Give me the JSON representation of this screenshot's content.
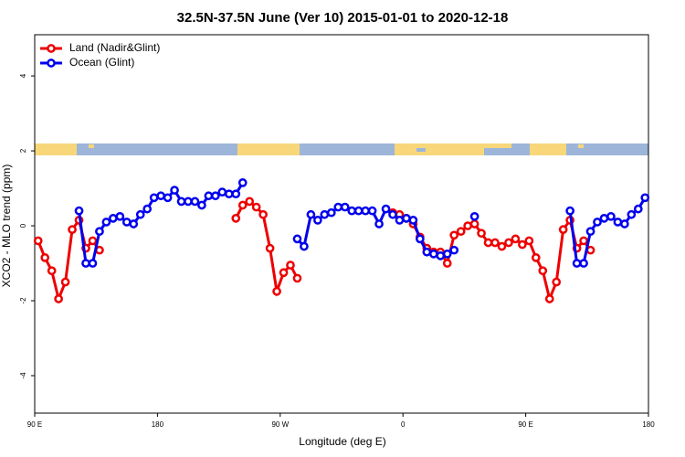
{
  "chart_data": {
    "type": "line",
    "title": "32.5N-37.5N June (Ver 10)   2015-01-01 to 2020-12-18",
    "x_label": "Longitude (deg E)",
    "y_label": "XCO2 - MLO trend (ppm)",
    "xlim": [
      90,
      540
    ],
    "ylim": [
      -5,
      5.1
    ],
    "xticks": [
      {
        "value": 90,
        "label": "90 E"
      },
      180,
      {
        "value": 270,
        "label": "90 W"
      },
      {
        "value": 360,
        "label": "0"
      },
      {
        "value": 450,
        "label": "90 E"
      },
      {
        "value": 540,
        "label": "180"
      }
    ],
    "yticks": [
      -4,
      -2,
      0,
      2,
      4
    ],
    "legend": "top-left",
    "series": [
      {
        "name": "Land (Nadir&Glint)",
        "color": "#ee0000",
        "x": [
          92.5,
          97.5,
          102.5,
          107.5,
          112.5,
          117.5,
          122.5,
          127.5,
          132.5,
          137.5,
          142.5,
          237.5,
          242.5,
          247.5,
          252.5,
          257.5,
          262.5,
          267.5,
          272.5,
          277.5,
          282.5,
          287.5,
          352.5,
          357.5,
          362.5,
          367.5,
          372.5,
          377.5,
          382.5,
          387.5,
          392.5,
          397.5,
          402.5,
          407.5,
          412.5,
          417.5,
          422.5,
          427.5,
          432.5,
          437.5,
          442.5,
          447.5,
          452.5,
          457.5,
          462.5,
          467.5,
          472.5,
          477.5,
          482.5,
          487.5,
          492.5,
          497.5
        ],
        "values": [
          -0.4,
          -0.85,
          -1.2,
          -1.95,
          -1.5,
          -0.1,
          0.15,
          -0.6,
          -0.4,
          -0.65,
          null,
          0.2,
          0.55,
          0.65,
          0.5,
          0.3,
          -0.6,
          -1.75,
          -1.25,
          -1.05,
          -1.4,
          null,
          0.35,
          0.3,
          0.2,
          0.05,
          -0.3,
          -0.6,
          -0.7,
          -0.7,
          -1.0,
          -0.25,
          -0.15,
          0.0,
          0.05,
          -0.2,
          -0.45,
          -0.45,
          -0.55,
          -0.45,
          -0.35,
          -0.5,
          -0.4,
          -0.85,
          -1.2,
          -1.95,
          -1.5,
          -0.1,
          0.15,
          -0.6,
          -0.4,
          -0.65
        ]
      },
      {
        "name": "Ocean (Glint)",
        "color": "#0000ee",
        "x": [
          122.5,
          127.5,
          132.5,
          137.5,
          142.5,
          147.5,
          152.5,
          157.5,
          162.5,
          167.5,
          172.5,
          177.5,
          182.5,
          187.5,
          192.5,
          197.5,
          202.5,
          207.5,
          212.5,
          217.5,
          222.5,
          227.5,
          232.5,
          237.5,
          242.5,
          247.5,
          282.5,
          287.5,
          292.5,
          297.5,
          302.5,
          307.5,
          312.5,
          317.5,
          322.5,
          327.5,
          332.5,
          337.5,
          342.5,
          347.5,
          352.5,
          357.5,
          362.5,
          367.5,
          372.5,
          377.5,
          382.5,
          387.5,
          392.5,
          397.5,
          402.5,
          412.5,
          417.5,
          482.5,
          487.5,
          492.5,
          497.5,
          502.5,
          507.5,
          512.5,
          517.5,
          522.5,
          527.5,
          532.5,
          537.5
        ],
        "values": [
          0.4,
          -1.0,
          -1.0,
          -0.15,
          0.1,
          0.2,
          0.25,
          0.1,
          0.05,
          0.3,
          0.45,
          0.75,
          0.8,
          0.75,
          0.95,
          0.65,
          0.65,
          0.65,
          0.55,
          0.8,
          0.8,
          0.9,
          0.85,
          0.85,
          1.15,
          null,
          -0.35,
          -0.55,
          0.3,
          0.15,
          0.3,
          0.35,
          0.5,
          0.5,
          0.4,
          0.4,
          0.4,
          0.4,
          0.05,
          0.45,
          0.3,
          0.15,
          0.2,
          0.15,
          -0.35,
          -0.7,
          -0.75,
          -0.8,
          -0.75,
          -0.65,
          null,
          0.25,
          null,
          0.4,
          -1.0,
          -1.0,
          -0.15,
          0.1,
          0.2,
          0.25,
          0.1,
          0.05,
          0.3,
          0.45,
          0.75
        ]
      }
    ]
  }
}
